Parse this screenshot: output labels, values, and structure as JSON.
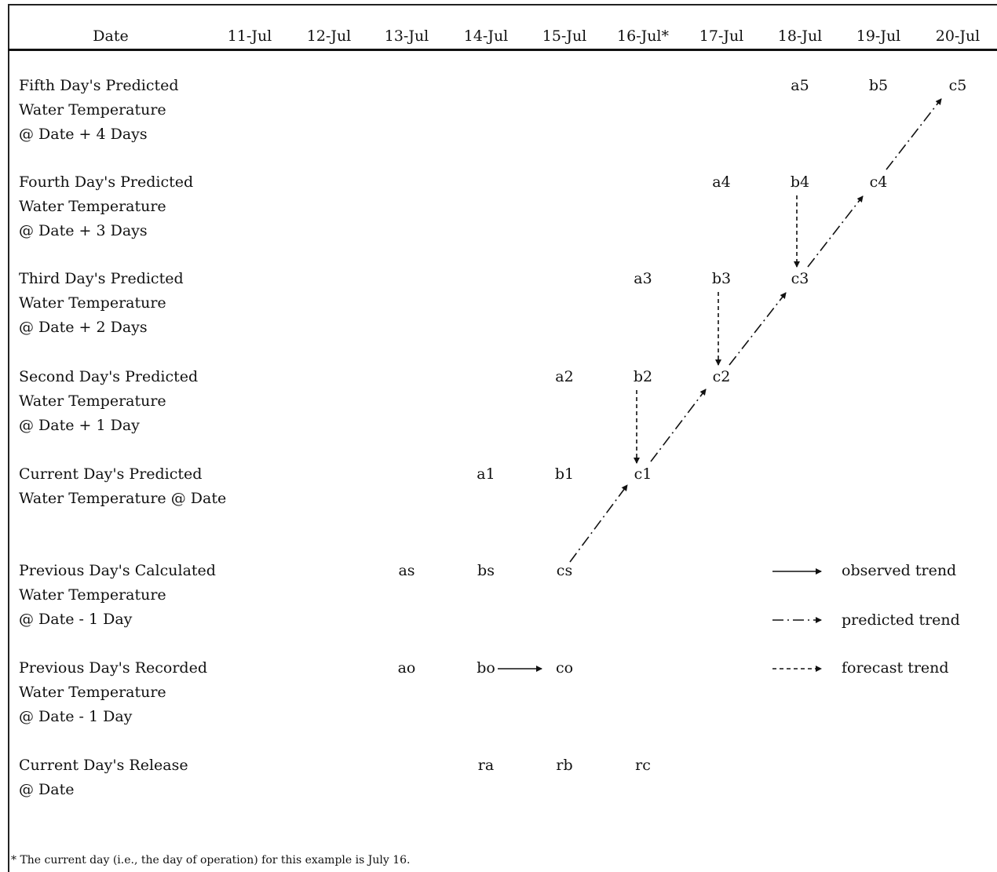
{
  "header": {
    "date_label": "Date",
    "dates": [
      "11-Jul",
      "12-Jul",
      "13-Jul",
      "14-Jul",
      "15-Jul",
      "16-Jul*",
      "17-Jul",
      "18-Jul",
      "19-Jul",
      "20-Jul"
    ]
  },
  "rows": [
    {
      "lines": [
        "Fifth Day's Predicted",
        "Water Temperature",
        "@ Date + 4 Days"
      ]
    },
    {
      "lines": [
        "Fourth Day's Predicted",
        "Water Temperature",
        "@ Date + 3 Days"
      ]
    },
    {
      "lines": [
        "Third Day's Predicted",
        "Water Temperature",
        "@ Date + 2 Days"
      ]
    },
    {
      "lines": [
        "Second Day's Predicted",
        "Water Temperature",
        "@ Date + 1 Day"
      ]
    },
    {
      "lines": [
        "Current Day's Predicted",
        "Water Temperature @ Date"
      ]
    },
    {
      "lines": [
        "Previous Day's Calculated",
        "Water Temperature",
        "@ Date - 1 Day"
      ]
    },
    {
      "lines": [
        "Previous Day's Recorded",
        "Water Temperature",
        "@ Date - 1 Day"
      ]
    },
    {
      "lines": [
        "Current Day's Release",
        "@ Date"
      ]
    }
  ],
  "cells": {
    "fifth": [
      "a5",
      "b5",
      "c5"
    ],
    "fourth": [
      "a4",
      "b4",
      "c4"
    ],
    "third": [
      "a3",
      "b3",
      "c3"
    ],
    "second": [
      "a2",
      "b2",
      "c2"
    ],
    "current": [
      "a1",
      "b1",
      "c1"
    ],
    "calculated": [
      "as",
      "bs",
      "cs"
    ],
    "recorded": [
      "ao",
      "bo",
      "co"
    ],
    "release": [
      "ra",
      "rb",
      "rc"
    ]
  },
  "legend": {
    "observed": "observed trend",
    "predicted": "predicted trend",
    "forecast": "forecast trend"
  },
  "footnote": "* The current day (i.e., the day of operation) for this example is July 16."
}
